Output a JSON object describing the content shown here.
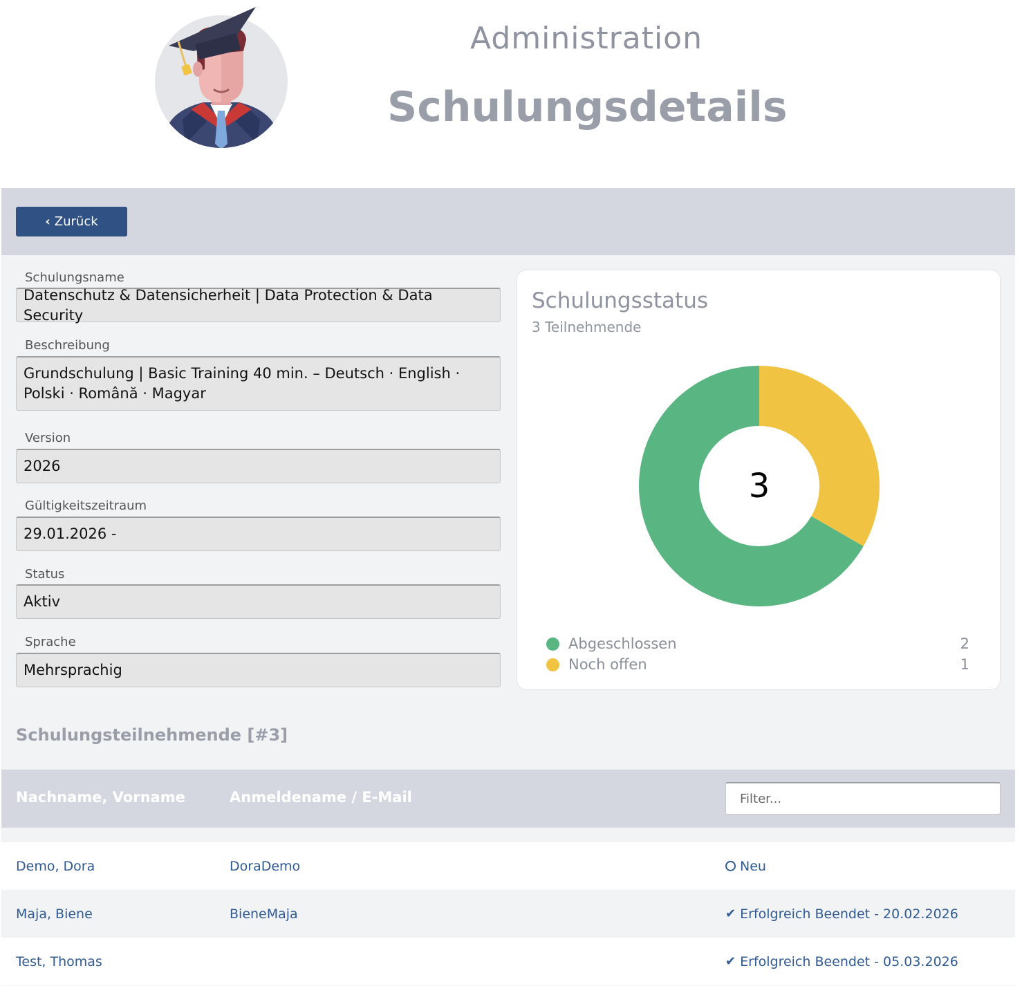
{
  "header": {
    "subtitle": "Administration",
    "title": "Schulungsdetails"
  },
  "toolbar": {
    "back_icon": "chevron-left-icon",
    "back_label": "Zurück"
  },
  "fields": {
    "name": {
      "label": "Schulungsname",
      "value": "Datenschutz & Datensicherheit | Data Protection & Data Security"
    },
    "description": {
      "label": "Beschreibung",
      "value": "Grundschulung | Basic Training 40 min. – Deutsch · English · Polski · Română · Magyar"
    },
    "version": {
      "label": "Version",
      "value": "2026"
    },
    "validity": {
      "label": "Gültigkeitszeitraum",
      "value": "29.01.2026 -"
    },
    "status": {
      "label": "Status",
      "value": "Aktiv"
    },
    "language": {
      "label": "Sprache",
      "value": "Mehrsprachig"
    }
  },
  "status_card": {
    "title": "Schulungsstatus",
    "subtitle": "3 Teilnehmende",
    "center_value": "3"
  },
  "chart_data": {
    "type": "pie",
    "categories": [
      "Abgeschlossen",
      "Noch offen"
    ],
    "values": [
      2,
      1
    ],
    "colors": [
      "#59b683",
      "#f1c343"
    ],
    "center_label": "3",
    "legend_placement": "bottom"
  },
  "participants": {
    "title": "Schulungsteilnehmende [#3]",
    "columns": [
      "Nachname, Vorname",
      "Anmeldename / E-Mail"
    ],
    "filter_placeholder": "Filter...",
    "rows": [
      {
        "name": "Demo, Dora",
        "login": "DoraDemo",
        "status_icon": "circle-outline-icon",
        "status": "Neu"
      },
      {
        "name": "Maja, Biene",
        "login": "BieneMaja",
        "status_icon": "check-icon",
        "status": "Erfolgreich Beendet - 20.02.2026"
      },
      {
        "name": "Test, Thomas",
        "login": "",
        "status_icon": "check-icon",
        "status": "Erfolgreich Beendet - 05.03.2026"
      }
    ]
  },
  "colors": {
    "primary": "#2f5183",
    "link": "#2f5a93",
    "completed": "#59b683",
    "open": "#f1c343",
    "band": "#d4d7df"
  }
}
